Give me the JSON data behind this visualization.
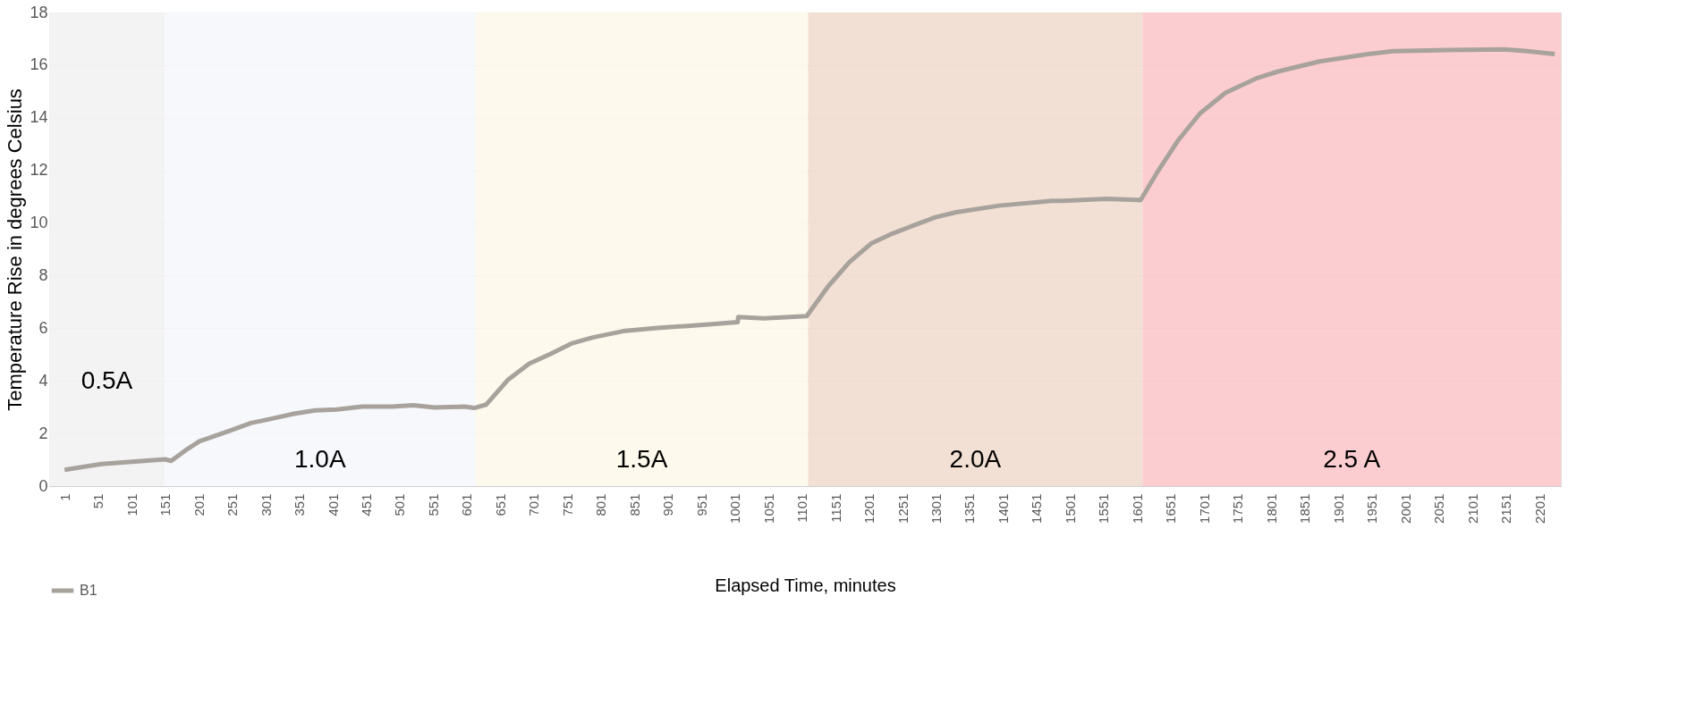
{
  "chart_data": {
    "type": "line",
    "xlabel": "Elapsed Time, minutes",
    "ylabel": "Temperature Rise in degrees Celsius",
    "xlim": [
      -22,
      2233
    ],
    "ylim": [
      0,
      18
    ],
    "yticks": [
      0,
      2,
      4,
      6,
      8,
      10,
      12,
      14,
      16,
      18
    ],
    "xticks": [
      1,
      51,
      101,
      151,
      201,
      251,
      301,
      351,
      401,
      451,
      501,
      551,
      601,
      651,
      701,
      751,
      801,
      851,
      901,
      951,
      1001,
      1051,
      1101,
      1151,
      1201,
      1251,
      1301,
      1351,
      1401,
      1451,
      1501,
      1551,
      1601,
      1651,
      1701,
      1751,
      1801,
      1851,
      1901,
      1951,
      2001,
      2051,
      2101,
      2151,
      2201
    ],
    "grid": "y",
    "legend": "bottom",
    "marker": "none",
    "line_style": "solid",
    "bands": [
      {
        "axis": "x",
        "from": -22,
        "to": 150,
        "label": "0.5A",
        "color": "#f2f2f2"
      },
      {
        "axis": "x",
        "from": 150,
        "to": 614,
        "label": "1.0A",
        "color": "#f5f7fc"
      },
      {
        "axis": "x",
        "from": 614,
        "to": 1110,
        "label": "1.5A",
        "color": "#fdf8ea"
      },
      {
        "axis": "x",
        "from": 1110,
        "to": 1609,
        "label": "2.0A",
        "color": "#f2ddd0"
      },
      {
        "axis": "x",
        "from": 1609,
        "to": 2233,
        "label": "2.5 A",
        "color": "#fcc8cb"
      }
    ],
    "series": [
      {
        "name": "B1",
        "color": "#a8a29c",
        "x": [
          1,
          56,
          151,
          160,
          183,
          202,
          247,
          279,
          311,
          343,
          375,
          407,
          445,
          490,
          521,
          553,
          598,
          612,
          630,
          662,
          694,
          726,
          757,
          789,
          834,
          885,
          949,
          1005,
          1006,
          1044,
          1108,
          1140,
          1172,
          1204,
          1236,
          1268,
          1300,
          1331,
          1395,
          1474,
          1491,
          1555,
          1606,
          1631,
          1663,
          1695,
          1733,
          1778,
          1810,
          1873,
          1937,
          1982,
          2065,
          2148,
          2180,
          2224
        ],
        "values": [
          0.62,
          0.84,
          1.02,
          0.96,
          1.39,
          1.7,
          2.1,
          2.4,
          2.57,
          2.75,
          2.88,
          2.91,
          3.02,
          3.02,
          3.07,
          2.99,
          3.02,
          2.97,
          3.1,
          4.03,
          4.65,
          5.03,
          5.42,
          5.65,
          5.89,
          6.01,
          6.12,
          6.23,
          6.43,
          6.38,
          6.46,
          7.59,
          8.52,
          9.22,
          9.6,
          9.91,
          10.22,
          10.41,
          10.66,
          10.84,
          10.84,
          10.92,
          10.87,
          11.93,
          13.17,
          14.17,
          14.95,
          15.49,
          15.75,
          16.14,
          16.39,
          16.53,
          16.57,
          16.6,
          16.54,
          16.42
        ]
      }
    ]
  }
}
